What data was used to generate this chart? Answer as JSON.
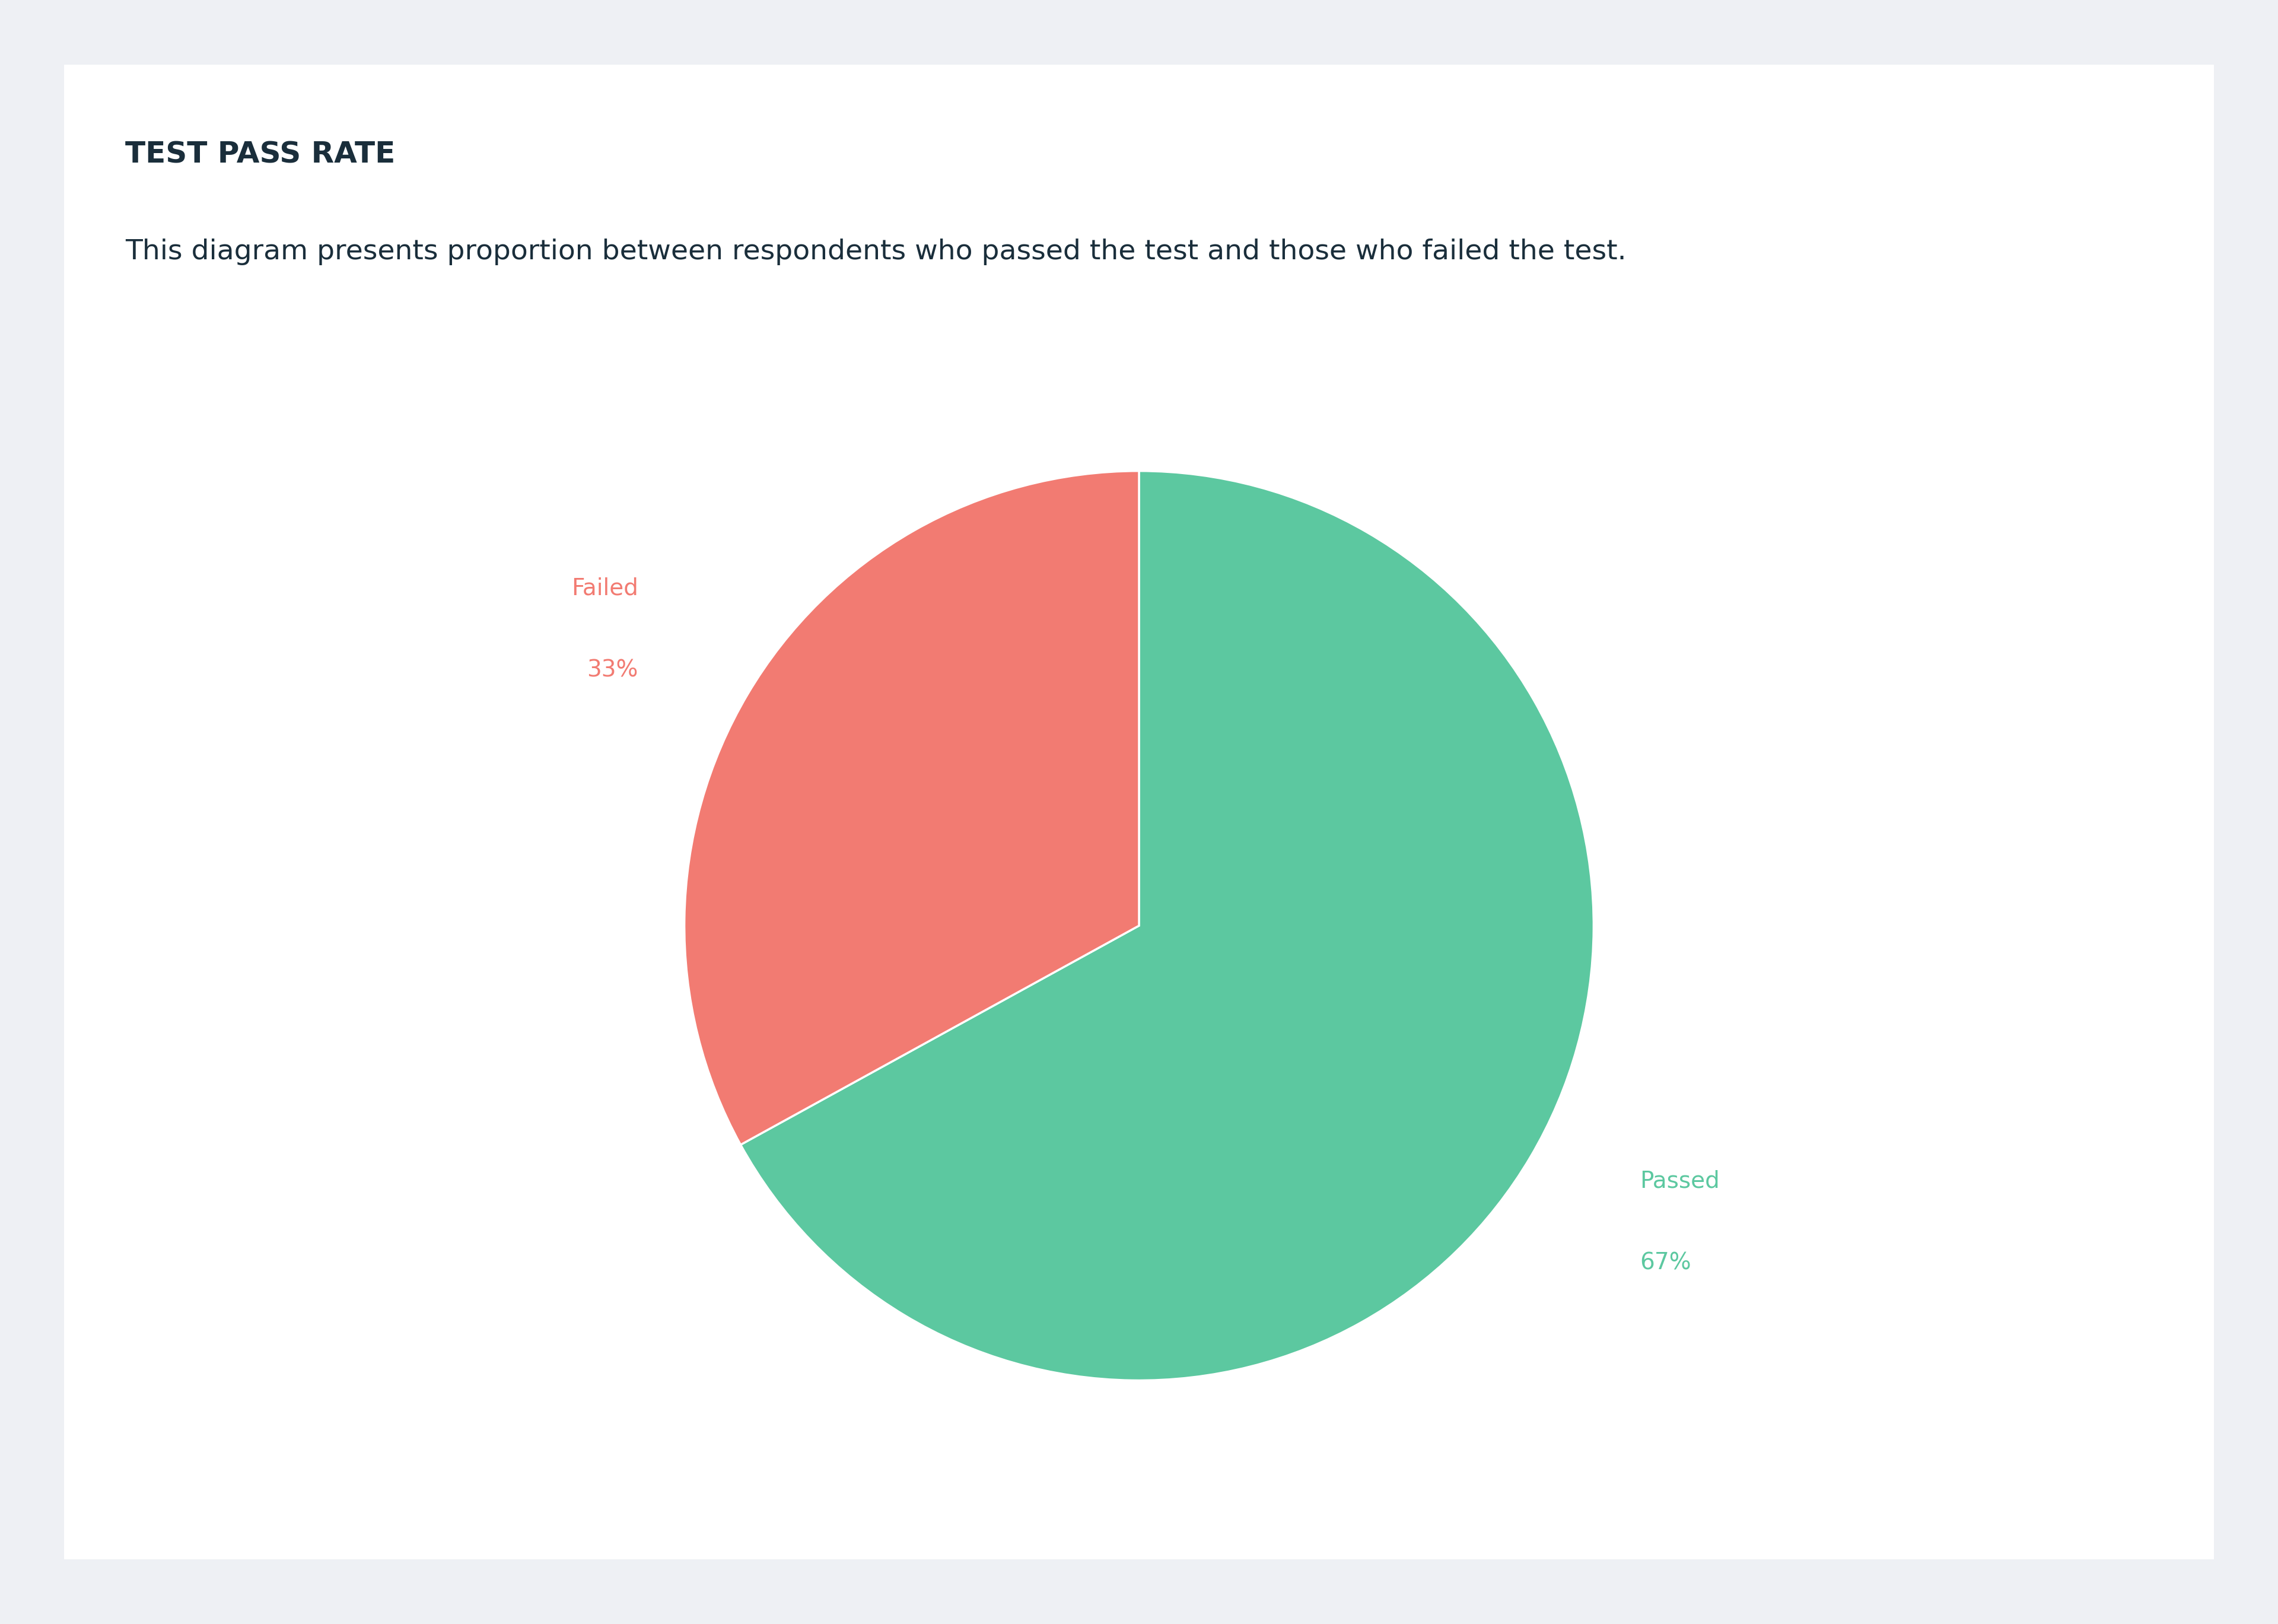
{
  "title": "TEST PASS RATE",
  "subtitle": "This diagram presents proportion between respondents who passed the test and those who failed the test.",
  "slices": [
    67,
    33
  ],
  "labels": [
    "Passed",
    "Failed"
  ],
  "percentages": [
    "67%",
    "33%"
  ],
  "colors": [
    "#5CC8A0",
    "#F27B72"
  ],
  "label_colors": [
    "#5CC8A0",
    "#F27B72"
  ],
  "start_angle": 90,
  "background_color": "#EEF0F4",
  "card_color": "#FFFFFF",
  "title_color": "#1A2E3B",
  "subtitle_color": "#1A2E3B",
  "title_fontsize": 36,
  "subtitle_fontsize": 34,
  "label_fontsize": 28,
  "pct_fontsize": 28
}
